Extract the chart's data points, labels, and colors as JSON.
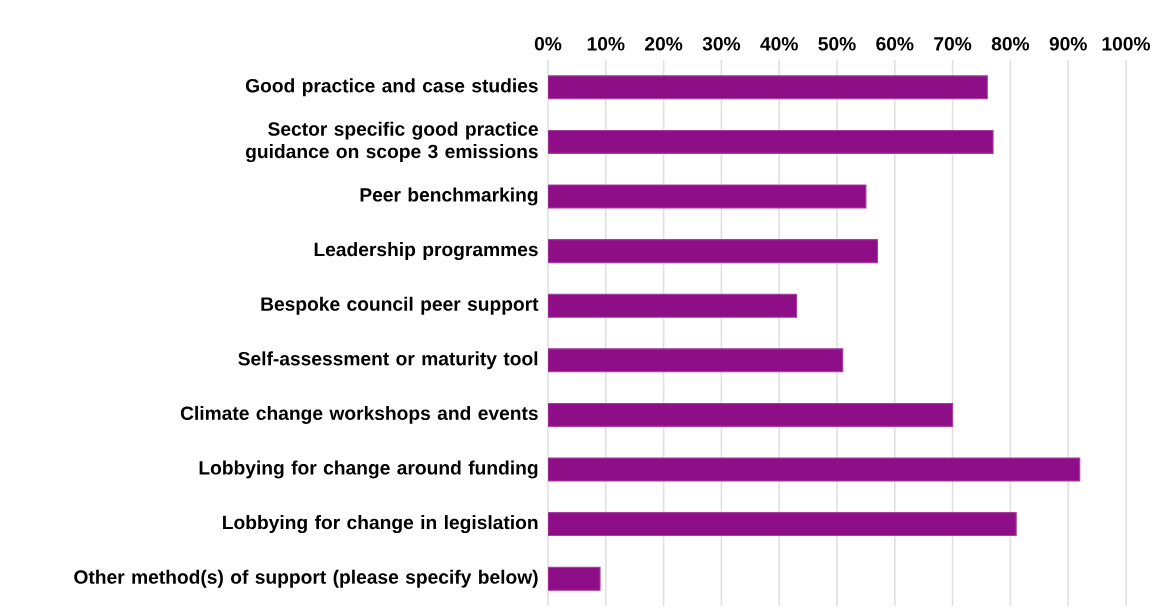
{
  "chart_data": {
    "type": "bar",
    "orientation": "horizontal",
    "categories": [
      "Good practice and case studies",
      "Sector specific good practice guidance on scope 3 emissions",
      "Peer benchmarking",
      "Leadership programmes",
      "Bespoke council peer support",
      "Self-assessment or maturity tool",
      "Climate change workshops and events",
      "Lobbying for change around funding",
      "Lobbying for change in legislation",
      "Other method(s) of support (please specify below)"
    ],
    "values": [
      76,
      77,
      55,
      57,
      43,
      51,
      70,
      92,
      81,
      9
    ],
    "color": "#8e0e87",
    "xlim": [
      0,
      100
    ],
    "xticks": [
      {
        "value": 0,
        "label": "0%"
      },
      {
        "value": 10,
        "label": "10%"
      },
      {
        "value": 20,
        "label": "20%"
      },
      {
        "value": 30,
        "label": "30%"
      },
      {
        "value": 40,
        "label": "40%"
      },
      {
        "value": 50,
        "label": "50%"
      },
      {
        "value": 60,
        "label": "60%"
      },
      {
        "value": 70,
        "label": "70%"
      },
      {
        "value": 80,
        "label": "80%"
      },
      {
        "value": 90,
        "label": "90%"
      },
      {
        "value": 100,
        "label": "100%"
      }
    ],
    "grid": "x"
  }
}
